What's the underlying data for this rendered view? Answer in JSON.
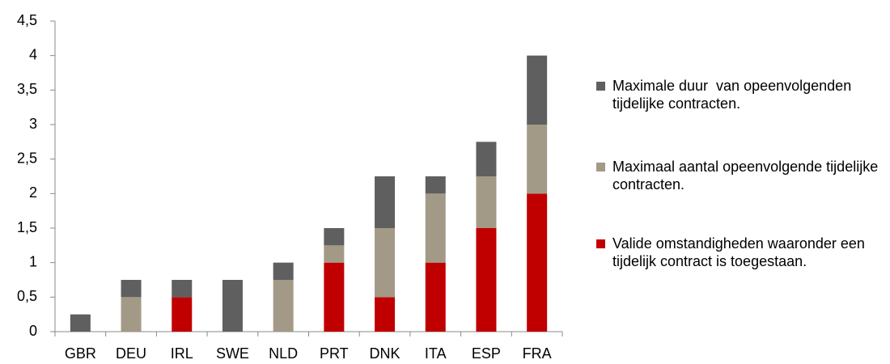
{
  "chart_data": {
    "type": "stacked_bar",
    "categories": [
      "GBR",
      "DEU",
      "IRL",
      "SWE",
      "NLD",
      "PRT",
      "DNK",
      "ITA",
      "ESP",
      "FRA"
    ],
    "series": [
      {
        "name": "Valide omstandigheden waaronder een tijdelijk contract is toegestaan.",
        "color": "#c00000",
        "values": [
          0,
          0,
          0.5,
          0,
          0,
          1,
          0.5,
          1,
          1.5,
          2
        ]
      },
      {
        "name": "Maximaal aantal opeenvolgende tijdelijke contracten.",
        "color": "#a29a87",
        "values": [
          0,
          0.5,
          0,
          0,
          0.75,
          0.25,
          1,
          1,
          0.75,
          1
        ]
      },
      {
        "name": "Maximale duur  van opeenvolgenden tijdelijke contracten.",
        "color": "#5f5f5f",
        "values": [
          0.25,
          0.25,
          0.25,
          0.75,
          0.25,
          0.25,
          0.75,
          0.25,
          0.5,
          1
        ]
      }
    ],
    "ylim": [
      0,
      4.5
    ],
    "yticks": [
      0,
      {
        "value": 0.5,
        "label": "0,5"
      },
      1,
      {
        "value": 1.5,
        "label": "1,5"
      },
      2,
      {
        "value": 2.5,
        "label": "2,5"
      },
      3,
      {
        "value": 3.5,
        "label": "3,5"
      },
      4,
      {
        "value": 4.5,
        "label": "4,5"
      }
    ],
    "grid": false,
    "legend": "right"
  }
}
